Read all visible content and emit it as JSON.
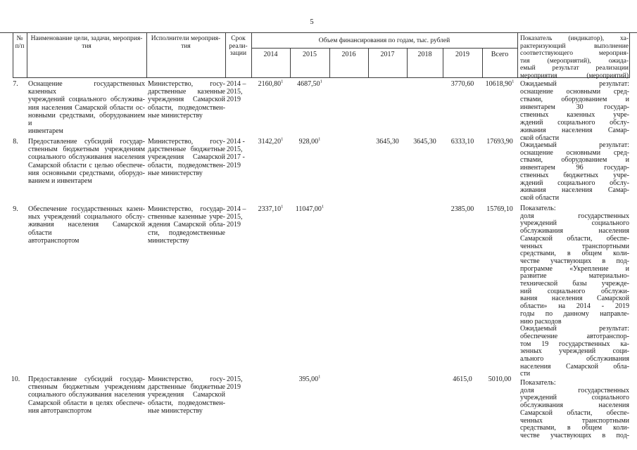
{
  "page": {
    "number": "5"
  },
  "table": {
    "header": {
      "num_lines": [
        "№",
        "п/п"
      ],
      "name_lines": [
        "Наименование цели, задачи, мероприя-",
        "тия"
      ],
      "executors_lines": [
        "Исполнители мероприя-",
        "тия"
      ],
      "term_lines": [
        "Срок",
        "реали-",
        "зации"
      ],
      "funding_label": "Объем финансирования по годам, тыс. рублей",
      "years": [
        "2014",
        "2015",
        "2016",
        "2017",
        "2018",
        "2019",
        "Всего"
      ],
      "indicator_lines": [
        "Показатель (индикатор), ха-",
        "рактеризующий выполнение",
        "соответствующего мероприя-",
        "тия (мероприятий), ожида-",
        "емый результат реализации",
        "мероприятия (мероприятий)"
      ]
    },
    "rows": [
      {
        "num": "7.",
        "name_lines": [
          "Оснащение государственных казенных",
          "учреждений социального обслужива-",
          "ния населения Самарской области ос-",
          "новными средствами, оборудованием и",
          "инвентарем"
        ],
        "executors_lines": [
          "Министерство, госу-",
          "дарственные казенные",
          "учреждения Самарской",
          "области, подведомствен-",
          "ные министерству"
        ],
        "term_lines": [
          "2014 –",
          "2015,",
          "2019"
        ],
        "amounts": [
          {
            "col": "2014",
            "value": "2160,80",
            "sup": "1"
          },
          {
            "col": "2015",
            "value": "4687,50",
            "sup": "1"
          },
          {
            "col": "2019",
            "value": "3770,60",
            "sup": ""
          },
          {
            "col": "total",
            "value": "10618,90",
            "sup": "1"
          }
        ],
        "indicator_lines": [
          "Ожидаемый результат:",
          "оснащение основными сред-",
          "ствами, оборудованием и",
          "инвентарем 30 государ-",
          "ственных казенных учре-",
          "ждений социального обслу-",
          "живания населения Самар-",
          "ской области"
        ]
      },
      {
        "num": "8.",
        "name_lines": [
          "Предоставление субсидий государ-",
          "ственным бюджетным учреждениям",
          "социального обслуживания населения",
          "Самарской области с целью обеспече-",
          "ния основными средствами, оборудо-",
          "ванием и инвентарем"
        ],
        "executors_lines": [
          "Министерство, госу-",
          "дарственные бюджетные",
          "учреждения Самарской",
          "области, подведомствен-",
          "ные министерству"
        ],
        "term_lines": [
          "2014 -",
          "2015,",
          "2017 -",
          "2019"
        ],
        "amounts": [
          {
            "col": "2014",
            "value": "3142,20",
            "sup": "1"
          },
          {
            "col": "2015",
            "value": "928,00",
            "sup": "1"
          },
          {
            "col": "2017",
            "value": "3645,30",
            "sup": ""
          },
          {
            "col": "2018",
            "value": "3645,30",
            "sup": ""
          },
          {
            "col": "2019",
            "value": "6333,10",
            "sup": ""
          },
          {
            "col": "total",
            "value": "17693,90",
            "sup": ""
          }
        ],
        "indicator_lines": [
          "Ожидаемый результат:",
          "оснащение основными сред-",
          "ствами, оборудованием и",
          "инвентарем 96 государ-",
          "ственных бюджетных учре-",
          "ждений социального обслу-",
          "живания населения Самар-",
          "ской области"
        ]
      },
      {
        "num": "9.",
        "name_lines": [
          "Обеспечение государственных казен-",
          "ных учреждений социального обслу-",
          "живания населения Самарской области",
          "автотранспортом"
        ],
        "executors_lines": [
          "Министерство, государ-",
          "ственные казенные учре-",
          "ждения Самарской обла-",
          "сти, подведомственные",
          "министерству"
        ],
        "term_lines": [
          "2014 –",
          "2015,",
          "2019"
        ],
        "amounts": [
          {
            "col": "2014",
            "value": "2337,10",
            "sup": "1"
          },
          {
            "col": "2015",
            "value": "11047,00",
            "sup": "1"
          },
          {
            "col": "2019",
            "value": "2385,00",
            "sup": ""
          },
          {
            "col": "total",
            "value": "15769,10",
            "sup": ""
          }
        ],
        "indicator_lines": [
          "Показатель:",
          "доля государственных",
          "учреждений социального",
          "обслуживания населения",
          "Самарской области, обеспе-",
          "ченных транспортными",
          "средствами, в общем коли-",
          "честве участвующих в под-",
          "программе «Укрепление и",
          "развитие материально-",
          "технической базы учрежде-",
          "ний социального обслужи-",
          "вания населения Самарской",
          "области» на 2014 - 2019",
          "годы по данному направле-",
          "нию расходов",
          "Ожидаемый результат:",
          "обеспечение автотранспор-",
          "том 19 государственных ка-",
          "зенных учреждений соци-",
          "ального обслуживания",
          "населения Самарской обла-",
          "сти"
        ]
      },
      {
        "num": "10.",
        "name_lines": [
          "Предоставление субсидий государ-",
          "ственным бюджетным учреждениям",
          "социального обслуживания населения",
          "Самарской области в целях обеспече-",
          "ния автотранспортом"
        ],
        "executors_lines": [
          "Министерство, госу-",
          "дарственные бюджетные",
          "учреждения Самарской",
          "области, подведомствен-",
          "ные министерству"
        ],
        "term_lines": [
          "2015,",
          "2019"
        ],
        "amounts": [
          {
            "col": "2015",
            "value": "395,00",
            "sup": "1"
          },
          {
            "col": "2019",
            "value": "4615,0",
            "sup": ""
          },
          {
            "col": "total",
            "value": "5010,00",
            "sup": ""
          }
        ],
        "indicator_lines": [
          "Показатель:",
          "доля государственных",
          "учреждений социального",
          "обслуживания населения",
          "Самарской области, обеспе-",
          "ченных транспортными",
          "средствами, в общем коли-",
          "честве участвующих в под-"
        ]
      }
    ]
  }
}
